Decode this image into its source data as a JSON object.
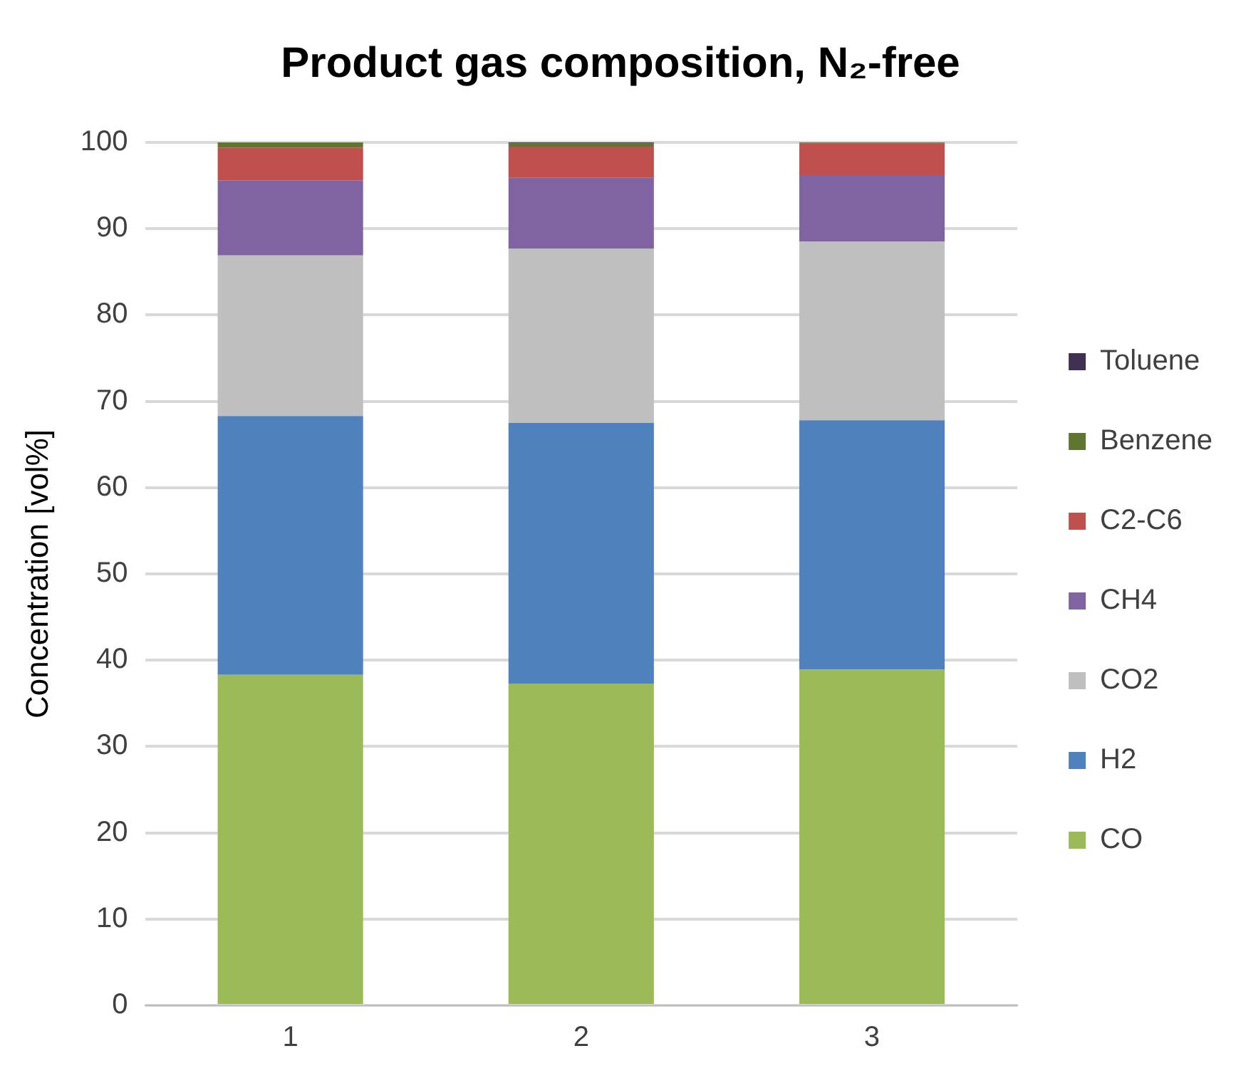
{
  "chart_data": {
    "type": "bar",
    "title": "Product gas composition, N₂-free",
    "ylabel": "Concentration [vol%]",
    "categories": [
      "1",
      "2",
      "3"
    ],
    "stacked": true,
    "legend": "right",
    "grid": "y",
    "ylim": [
      0,
      100
    ],
    "yticks": [
      0,
      10,
      20,
      30,
      40,
      50,
      60,
      70,
      80,
      90,
      100
    ],
    "series": [
      {
        "name": "CO",
        "color": "#9bbb59",
        "values": [
          38.3,
          37.3,
          38.9
        ]
      },
      {
        "name": "H2",
        "color": "#4f81bd",
        "values": [
          30.0,
          30.2,
          28.9
        ]
      },
      {
        "name": "CO2",
        "color": "#bfbfbf",
        "values": [
          18.6,
          20.2,
          20.7
        ]
      },
      {
        "name": "CH4",
        "color": "#8064a2",
        "values": [
          8.7,
          8.2,
          7.7
        ]
      },
      {
        "name": "C2-C6",
        "color": "#c0504d",
        "values": [
          3.8,
          3.6,
          3.7
        ]
      },
      {
        "name": "Benzene",
        "color": "#5f7530",
        "values": [
          0.6,
          0.4,
          0.3
        ]
      },
      {
        "name": "Toluene",
        "color": "#403152",
        "values": [
          0,
          0.2,
          0
        ]
      }
    ]
  }
}
